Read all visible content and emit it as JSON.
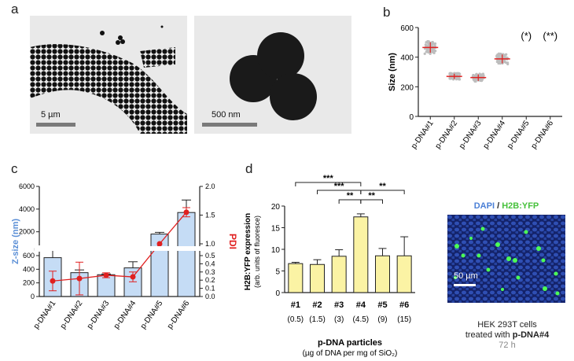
{
  "panels": {
    "a": "a",
    "b": "b",
    "c": "c",
    "d": "d"
  },
  "tem": {
    "left_scale": "5 µm",
    "right_scale": "500 nm"
  },
  "chart_data": [
    {
      "id": "b",
      "type": "scatter",
      "title": "",
      "xlabel": "",
      "ylabel": "Size (nm)",
      "ylim": [
        0,
        600
      ],
      "yticks": [
        0,
        200,
        400,
        600
      ],
      "categories": [
        "p-DNA#1",
        "p-DNA#2",
        "p-DNA#3",
        "p-DNA#4",
        "p-DNA#5",
        "p-DNA#6"
      ],
      "means": [
        465,
        270,
        262,
        388,
        null,
        null
      ],
      "sd": [
        35,
        18,
        22,
        30,
        null,
        null
      ],
      "annotations": {
        "p-DNA#5": "(*)",
        "p-DNA#6": "(**)"
      },
      "colors": {
        "points": "#bdbdbd",
        "mean": "#e02020"
      }
    },
    {
      "id": "c",
      "type": "bar",
      "ylabel": "Z-size (nm)",
      "y2label": "PDI",
      "categories": [
        "p-DNA#1",
        "p-DNA#2",
        "p-DNA#3",
        "p-DNA#4",
        "p-DNA#5",
        "p-DNA#6"
      ],
      "values": [
        570,
        350,
        320,
        420,
        1800,
        3700
      ],
      "errors": [
        70,
        40,
        10,
        90,
        150,
        1100
      ],
      "yticks_lower": [
        0,
        200,
        400,
        600
      ],
      "yticks_upper": [
        2000,
        4000,
        6000
      ],
      "pdi": [
        0.19,
        0.22,
        0.26,
        0.24,
        1.0,
        1.55
      ],
      "pdi_errors": [
        0.12,
        0.2,
        0.03,
        0.06,
        0.0,
        0.08
      ],
      "y2ticks": [
        "0.0",
        "0.1",
        "0.2",
        "0.3",
        "0.4",
        "0.5",
        "1.0",
        "1.5",
        "2.0"
      ],
      "colors": {
        "bar": "#c5dcf5",
        "pdi": "#e02020",
        "ylabel": "#5b8fd6"
      }
    },
    {
      "id": "d",
      "type": "bar",
      "ylabel": "H2B:YFP expression",
      "ylabel2": "(arb. units of fluoresce)",
      "ylim": [
        0,
        20
      ],
      "yticks": [
        0,
        5,
        10,
        15,
        20
      ],
      "categories": [
        "#1",
        "#2",
        "#3",
        "#4",
        "#5",
        "#6"
      ],
      "sublabels": [
        "(0.5)",
        "(1.5)",
        "(3)",
        "(4.5)",
        "(9)",
        "(15)"
      ],
      "values": [
        6.7,
        6.5,
        8.4,
        17.5,
        8.5,
        8.5
      ],
      "errors": [
        0.3,
        1.1,
        1.5,
        0.7,
        1.7,
        4.4
      ],
      "significance": [
        "***",
        "***",
        "**",
        "**",
        "**"
      ],
      "xlabel": "p-DNA particles",
      "xlabel2": "(µg of DNA per mg of SiO₂)",
      "colors": {
        "bar": "#fbf3a4"
      }
    }
  ],
  "micrograph": {
    "dapi": "DAPI",
    "sep": " / ",
    "yfp": "H2B:YFP",
    "scale": "50 µm",
    "caption1": "HEK 293T cells",
    "caption2a": "treated with ",
    "caption2b": "p-DNA#4",
    "caption3": "72 h"
  }
}
